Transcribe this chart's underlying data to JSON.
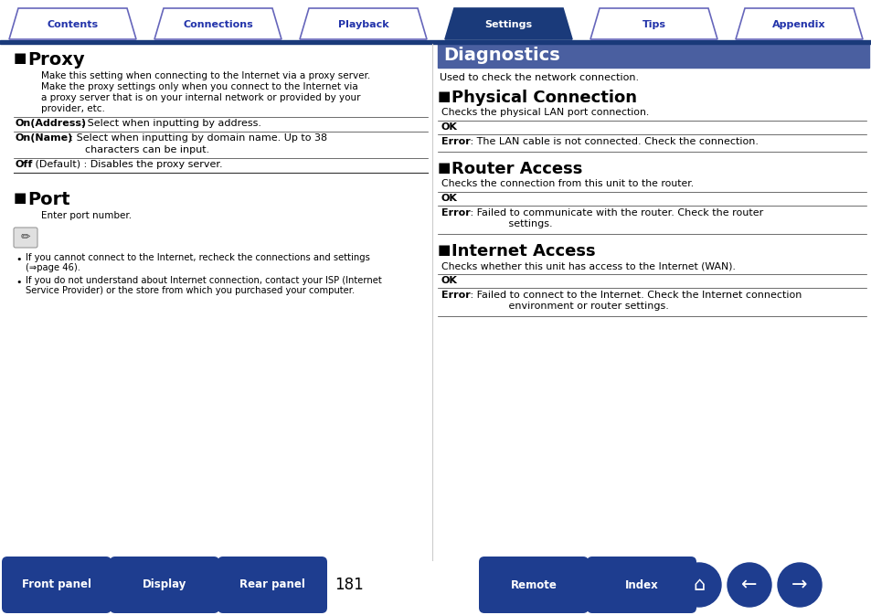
{
  "tab_labels": [
    "Contents",
    "Connections",
    "Playback",
    "Settings",
    "Tips",
    "Appendix"
  ],
  "active_tab": 3,
  "tab_active_fill": "#1a3a7a",
  "tab_inactive_fill": "#ffffff",
  "tab_active_border": "#1a3a7a",
  "tab_inactive_border": "#6666bb",
  "tab_active_text": "#ffffff",
  "tab_inactive_text": "#2233aa",
  "header_line_color": "#1a3a7a",
  "diag_header_fill": "#4a5fa0",
  "diag_header_text": "#ffffff",
  "diagnostics_title": "Diagnostics",
  "diagnostics_sub": "Used to check the network connection.",
  "left_proxy_title": "Proxy",
  "left_proxy_body": [
    "Make this setting when connecting to the Internet via a proxy server.",
    "Make the proxy settings only when you connect to the Internet via",
    "a proxy server that is on your internal network or provided by your",
    "provider, etc."
  ],
  "left_proxy_items": [
    {
      "bold": "On(Address)",
      "rest": " : Select when inputting by address."
    },
    {
      "bold": "On(Name)",
      "rest": " : Select when inputting by domain name. Up to 38",
      "rest2": "              characters can be input."
    },
    {
      "bold": "Off",
      "rest": " (Default) : Disables the proxy server."
    }
  ],
  "left_port_title": "Port",
  "left_port_body": "Enter port number.",
  "left_notes": [
    [
      "If you cannot connect to the Internet, recheck the connections and settings",
      "(⇒page 46)."
    ],
    [
      "If you do not understand about Internet connection, contact your ISP (Internet",
      "Service Provider) or the store from which you purchased your computer."
    ]
  ],
  "right_sections": [
    {
      "title": "Physical Connection",
      "sub": "Checks the physical LAN port connection.",
      "ok": "OK",
      "error_bold": "Error",
      "error_rest": " : The LAN cable is not connected. Check the connection.",
      "error_lines": 1
    },
    {
      "title": "Router Access",
      "sub": "Checks the connection from this unit to the router.",
      "ok": "OK",
      "error_bold": "Error",
      "error_rest": " : Failed to communicate with the router. Check the router",
      "error_rest2": "             settings.",
      "error_lines": 2
    },
    {
      "title": "Internet Access",
      "sub": "Checks whether this unit has access to the Internet (WAN).",
      "ok": "OK",
      "error_bold": "Error",
      "error_rest": " : Failed to connect to the Internet. Check the Internet connection",
      "error_rest2": "             environment or router settings.",
      "error_lines": 2
    }
  ],
  "bottom_btns_left": [
    "Front panel",
    "Display",
    "Rear panel"
  ],
  "bottom_btns_right": [
    "Remote",
    "Index"
  ],
  "page_num": "181",
  "btn_fill": "#1e3d8f",
  "btn_text": "#ffffff",
  "divider_col": "#333333",
  "thin_divider": "#aaaaaa",
  "bg": "#ffffff",
  "text_col": "#000000"
}
